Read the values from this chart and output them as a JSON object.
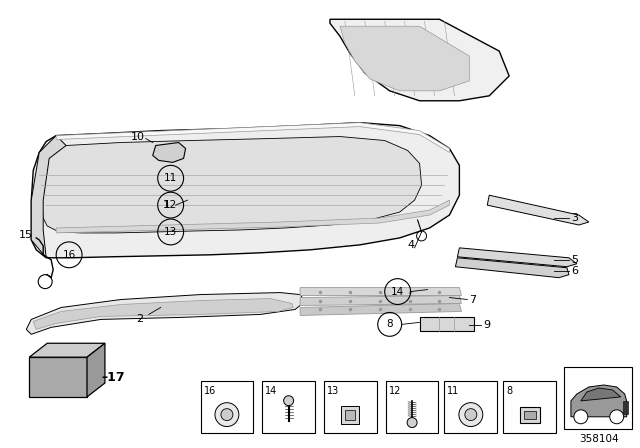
{
  "background_color": "#ffffff",
  "line_color": "#000000",
  "gray1": "#cccccc",
  "gray2": "#999999",
  "gray3": "#555555",
  "gray_fill": "#e8e8e8",
  "gray_med": "#bbbbbb",
  "gray_dark": "#777777",
  "diagram_id": "358104",
  "fig_width": 6.4,
  "fig_height": 4.48,
  "dpi": 100
}
